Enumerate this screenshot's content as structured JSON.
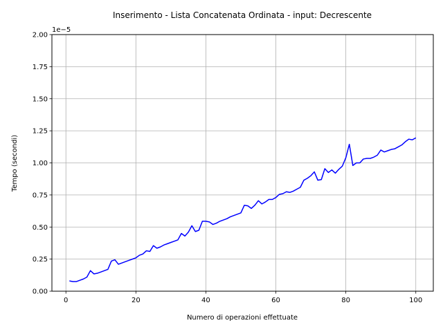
{
  "chart_data": {
    "type": "line",
    "title": "Inserimento - Lista Concatenata Ordinata - input: Decrescente",
    "xlabel": "Numero di operazioni effettuate",
    "ylabel": "Tempo (secondi)",
    "y_offset_label": "1e−5",
    "xlim": [
      -4,
      105
    ],
    "ylim": [
      0,
      2.0
    ],
    "x_ticks": [
      0,
      20,
      40,
      60,
      80,
      100
    ],
    "x_tick_labels": [
      "0",
      "20",
      "40",
      "60",
      "80",
      "100"
    ],
    "y_ticks": [
      0,
      0.25,
      0.5,
      0.75,
      1.0,
      1.25,
      1.5,
      1.75,
      2.0
    ],
    "y_tick_labels": [
      "0.00",
      "0.25",
      "0.50",
      "0.75",
      "1.00",
      "1.25",
      "1.50",
      "1.75",
      "2.00"
    ],
    "grid": true,
    "series": [
      {
        "color": "#0000ff",
        "x": [
          1,
          2,
          3,
          4,
          5,
          6,
          7,
          8,
          9,
          10,
          11,
          12,
          13,
          14,
          15,
          16,
          17,
          18,
          19,
          20,
          21,
          22,
          23,
          24,
          25,
          26,
          27,
          28,
          29,
          30,
          31,
          32,
          33,
          34,
          35,
          36,
          37,
          38,
          39,
          40,
          41,
          42,
          43,
          44,
          45,
          46,
          47,
          48,
          49,
          50,
          51,
          52,
          53,
          54,
          55,
          56,
          57,
          58,
          59,
          60,
          61,
          62,
          63,
          64,
          65,
          66,
          67,
          68,
          69,
          70,
          71,
          72,
          73,
          74,
          75,
          76,
          77,
          78,
          79,
          80,
          81,
          82,
          83,
          84,
          85,
          86,
          87,
          88,
          89,
          90,
          91,
          92,
          93,
          94,
          95,
          96,
          97,
          98,
          99,
          100
        ],
        "y": [
          0.08,
          0.075,
          0.075,
          0.085,
          0.095,
          0.11,
          0.16,
          0.135,
          0.14,
          0.15,
          0.16,
          0.17,
          0.235,
          0.245,
          0.21,
          0.22,
          0.23,
          0.24,
          0.25,
          0.26,
          0.28,
          0.29,
          0.315,
          0.31,
          0.355,
          0.335,
          0.345,
          0.36,
          0.37,
          0.38,
          0.39,
          0.4,
          0.45,
          0.43,
          0.46,
          0.51,
          0.465,
          0.475,
          0.545,
          0.545,
          0.54,
          0.52,
          0.53,
          0.545,
          0.555,
          0.565,
          0.58,
          0.59,
          0.6,
          0.61,
          0.67,
          0.665,
          0.645,
          0.67,
          0.705,
          0.68,
          0.695,
          0.715,
          0.715,
          0.73,
          0.755,
          0.76,
          0.775,
          0.77,
          0.78,
          0.795,
          0.81,
          0.865,
          0.88,
          0.9,
          0.93,
          0.865,
          0.87,
          0.955,
          0.925,
          0.945,
          0.92,
          0.95,
          0.975,
          1.04,
          1.145,
          0.98,
          1.0,
          1.0,
          1.03,
          1.035,
          1.035,
          1.045,
          1.06,
          1.1,
          1.085,
          1.095,
          1.105,
          1.11,
          1.125,
          1.14,
          1.165,
          1.185,
          1.18,
          1.195
        ]
      }
    ]
  }
}
